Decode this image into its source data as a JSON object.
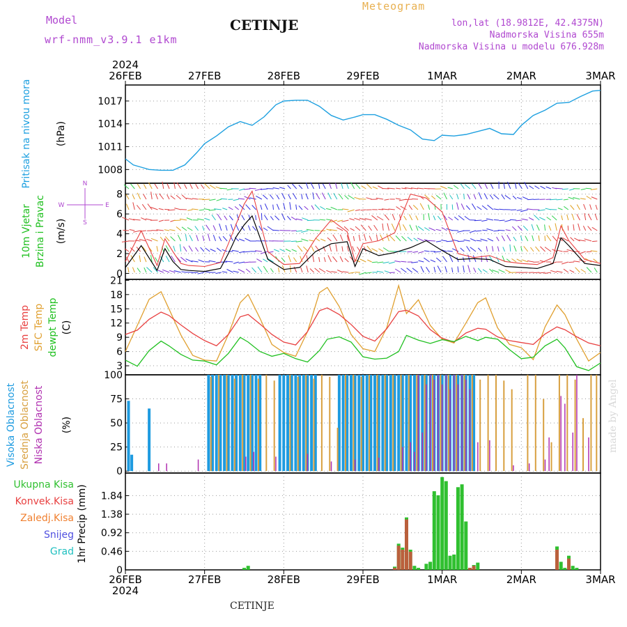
{
  "header": {
    "model_label": "Model",
    "model_name": "wrf-nmm_v3.9.1 e1km",
    "city": "CETINJE",
    "title": "Meteogram",
    "coords": "lon,lat (18.9812E, 42.4375N)",
    "elevation": "Nadmorska Visina 655m",
    "elevation_model": "Nadmorska Visina u modelu 676.928m"
  },
  "footer": {
    "city": "CETINJE",
    "credit": "made by Angel"
  },
  "time_axis": {
    "year": "2024",
    "labels": [
      "26FEB",
      "27FEB",
      "28FEB",
      "29FEB",
      "1MAR",
      "2MAR",
      "3MAR"
    ]
  },
  "colors": {
    "pressure": "#1ea0e0",
    "temp2m": "#e84040",
    "sfc_temp": "#e0a030",
    "dewpt": "#20c020",
    "high_cloud": "#1e9be0",
    "mid_cloud": "#d8a040",
    "low_cloud": "#b030b0",
    "total_precip": "#30c030",
    "conv_precip": "#e84040",
    "frozen_precip": "#f08030",
    "snow": "#5050e0",
    "graupel": "#20c0c0",
    "wind_speed": "#000000",
    "wind_gust": "#e84040"
  },
  "chart_data": [
    {
      "type": "line",
      "panel": "pressure",
      "ylabel": "Pritisak na nivou mora",
      "unit": "(hPa)",
      "yticks": [
        1008,
        1011,
        1014,
        1017
      ],
      "ylim": [
        1006.2,
        1019.1
      ],
      "x": [
        0,
        0.1,
        0.2,
        0.3,
        0.45,
        0.6,
        0.75,
        0.9,
        1.0,
        1.15,
        1.3,
        1.45,
        1.6,
        1.75,
        1.9,
        2.0,
        2.15,
        2.3,
        2.45,
        2.6,
        2.75,
        2.9,
        3.0,
        3.15,
        3.3,
        3.45,
        3.6,
        3.75,
        3.9,
        4.0,
        4.15,
        4.3,
        4.45,
        4.6,
        4.75,
        4.9,
        5.0,
        5.15,
        5.3,
        5.45,
        5.6,
        5.75,
        5.9,
        6.0
      ],
      "series": [
        {
          "values": [
            1009.4,
            1008.6,
            1008.3,
            1008.0,
            1007.9,
            1007.9,
            1008.6,
            1010.2,
            1011.4,
            1012.4,
            1013.6,
            1014.3,
            1013.8,
            1014.9,
            1016.5,
            1017.0,
            1017.1,
            1017.1,
            1016.3,
            1015.1,
            1014.5,
            1014.9,
            1015.2,
            1015.2,
            1014.6,
            1013.8,
            1013.2,
            1012.0,
            1011.8,
            1012.5,
            1012.4,
            1012.6,
            1013.0,
            1013.4,
            1012.7,
            1012.6,
            1013.8,
            1015.1,
            1015.8,
            1016.7,
            1016.8,
            1017.6,
            1018.3,
            1018.4
          ]
        }
      ]
    },
    {
      "type": "line",
      "panel": "wind",
      "ylabel": "10m Vjetar Brzina i Pravac",
      "unit": "(m/s)",
      "direction_key": [
        "N",
        "S",
        "W",
        "E"
      ],
      "yticks": [
        0,
        2,
        4,
        6,
        8
      ],
      "ylim": [
        -0.6,
        9.1
      ],
      "x": [
        0,
        0.2,
        0.4,
        0.5,
        0.6,
        0.7,
        0.8,
        1.0,
        1.2,
        1.3,
        1.4,
        1.5,
        1.6,
        1.8,
        2.0,
        2.2,
        2.4,
        2.6,
        2.8,
        2.9,
        3.0,
        3.2,
        3.4,
        3.6,
        3.8,
        4.0,
        4.2,
        4.4,
        4.6,
        4.8,
        5.0,
        5.2,
        5.4,
        5.5,
        5.6,
        5.8,
        6.0
      ],
      "series": [
        {
          "name": "speed",
          "values": [
            0.6,
            2.8,
            0.3,
            2.5,
            1.2,
            0.4,
            0.3,
            0.2,
            0.5,
            2.0,
            3.7,
            4.9,
            5.8,
            1.4,
            0.4,
            0.6,
            2.2,
            3.0,
            3.2,
            0.7,
            2.5,
            1.8,
            2.1,
            2.6,
            3.3,
            2.3,
            1.4,
            1.5,
            1.4,
            0.7,
            0.6,
            0.5,
            1.0,
            3.6,
            2.8,
            1.0,
            0.8
          ]
        },
        {
          "name": "gust",
          "values": [
            1.2,
            4.3,
            0.8,
            3.5,
            2.2,
            1.0,
            0.8,
            0.7,
            1.1,
            3.0,
            5.0,
            7.0,
            8.3,
            2.2,
            0.9,
            1.0,
            3.5,
            5.4,
            4.2,
            1.2,
            3.0,
            3.3,
            4.1,
            8.0,
            7.6,
            6.2,
            2.0,
            1.6,
            1.8,
            1.2,
            1.0,
            0.9,
            1.6,
            4.8,
            3.3,
            1.4,
            1.0
          ]
        }
      ]
    },
    {
      "type": "line",
      "panel": "temperature",
      "ylabel": "2m Temp / SFC Temp / dewpt Temp",
      "unit": "(C)",
      "yticks": [
        3,
        6,
        9,
        12,
        15,
        18,
        21
      ],
      "ylim": [
        1.1,
        21.2
      ],
      "x": [
        0,
        0.15,
        0.3,
        0.45,
        0.55,
        0.7,
        0.85,
        1.0,
        1.15,
        1.3,
        1.45,
        1.55,
        1.7,
        1.85,
        2.0,
        2.15,
        2.3,
        2.45,
        2.55,
        2.7,
        2.85,
        3.0,
        3.15,
        3.3,
        3.45,
        3.55,
        3.7,
        3.85,
        4.0,
        4.15,
        4.3,
        4.45,
        4.55,
        4.7,
        4.85,
        5.0,
        5.15,
        5.3,
        5.45,
        5.55,
        5.7,
        5.85,
        6.0
      ],
      "series": [
        {
          "name": "2m Temp",
          "values": [
            9.6,
            10.5,
            12.8,
            14.3,
            13.6,
            11.6,
            9.8,
            8.3,
            7.2,
            9.6,
            13.3,
            13.8,
            11.8,
            9.6,
            8.0,
            7.4,
            10.2,
            14.6,
            15.2,
            13.8,
            11.7,
            9.2,
            8.2,
            10.8,
            14.4,
            14.7,
            13.5,
            10.6,
            8.8,
            8.0,
            9.9,
            10.9,
            10.7,
            9.1,
            8.3,
            7.9,
            7.5,
            9.7,
            11.2,
            10.6,
            9.1,
            7.8,
            7.2
          ]
        },
        {
          "name": "SFC Temp",
          "values": [
            6.0,
            11.5,
            17.0,
            18.6,
            15.0,
            9.5,
            5.2,
            4.2,
            4.0,
            9.6,
            16.3,
            18.0,
            13.0,
            7.5,
            5.8,
            5.0,
            10.2,
            18.4,
            19.5,
            15.5,
            9.6,
            6.6,
            6.0,
            11.0,
            19.9,
            14.0,
            16.9,
            11.5,
            8.6,
            7.8,
            12.0,
            16.3,
            17.3,
            11.0,
            7.5,
            6.8,
            4.3,
            11.2,
            15.8,
            13.8,
            8.6,
            4.0,
            5.8
          ]
        },
        {
          "name": "dewpt Temp",
          "values": [
            4.2,
            2.9,
            6.2,
            8.2,
            7.2,
            5.4,
            4.2,
            4.0,
            3.2,
            5.6,
            9.0,
            8.0,
            6.0,
            5.0,
            5.6,
            4.5,
            3.8,
            6.2,
            8.6,
            9.1,
            8.0,
            4.9,
            4.4,
            4.6,
            6.0,
            9.4,
            8.4,
            7.7,
            8.5,
            8.1,
            9.2,
            8.3,
            9.0,
            8.6,
            6.4,
            4.5,
            4.8,
            7.2,
            8.6,
            6.8,
            2.8,
            2.0,
            3.6
          ]
        }
      ]
    },
    {
      "type": "bar",
      "panel": "cloud",
      "ylabel": "Visoka Oblacnost / Srednja Oblacnost / Niska Oblacnost",
      "unit": "(%)",
      "yticks": [
        0,
        25,
        50,
        75,
        100
      ],
      "ylim": [
        -2,
        100
      ],
      "series": [
        {
          "name": "Visoka Oblacnost",
          "x": [
            0.04,
            0.08,
            0.3,
            1.05,
            1.1,
            1.15,
            1.2,
            1.25,
            1.3,
            1.35,
            1.4,
            1.45,
            1.5,
            1.55,
            1.6,
            1.65,
            1.7,
            1.95,
            2.0,
            2.05,
            2.1,
            2.15,
            2.2,
            2.25,
            2.3,
            2.35,
            2.4,
            2.7,
            2.75,
            2.8,
            2.85,
            2.9,
            2.95,
            3.0,
            3.05,
            3.1,
            3.15,
            3.2,
            3.25,
            3.3,
            3.35,
            3.4,
            3.45,
            3.5,
            3.55,
            3.6,
            3.65,
            3.7,
            3.75,
            3.8,
            3.85,
            3.9,
            3.95,
            4.0,
            4.05,
            4.1,
            4.15,
            4.2,
            4.25,
            4.3,
            4.35,
            4.4
          ],
          "values": [
            73,
            17,
            65,
            100,
            100,
            100,
            100,
            100,
            100,
            100,
            100,
            100,
            100,
            100,
            100,
            100,
            100,
            100,
            100,
            100,
            100,
            100,
            100,
            100,
            100,
            100,
            100,
            100,
            100,
            100,
            100,
            100,
            100,
            100,
            100,
            100,
            100,
            100,
            100,
            100,
            100,
            100,
            100,
            100,
            100,
            100,
            100,
            100,
            100,
            100,
            100,
            100,
            100,
            100,
            100,
            100,
            100,
            100,
            100,
            100,
            100,
            100
          ]
        },
        {
          "name": "Srednja Oblacnost",
          "x": [
            1.08,
            1.18,
            1.28,
            1.38,
            1.48,
            1.58,
            1.68,
            1.78,
            1.88,
            2.08,
            2.18,
            2.28,
            2.38,
            2.48,
            2.58,
            2.68,
            2.78,
            2.88,
            2.98,
            3.08,
            3.18,
            3.28,
            3.38,
            3.48,
            3.58,
            3.68,
            3.78,
            3.88,
            3.98,
            4.08,
            4.18,
            4.28,
            4.38,
            4.48,
            4.58,
            4.68,
            4.78,
            4.88,
            5.08,
            5.18,
            5.28,
            5.38,
            5.48,
            5.58,
            5.68,
            5.78,
            5.88,
            5.95
          ],
          "values": [
            98,
            100,
            100,
            96,
            100,
            100,
            96,
            100,
            94,
            100,
            98,
            100,
            96,
            100,
            98,
            45,
            100,
            100,
            98,
            100,
            100,
            100,
            100,
            100,
            100,
            100,
            100,
            100,
            100,
            100,
            100,
            100,
            100,
            95,
            100,
            100,
            94,
            85,
            100,
            100,
            75,
            30,
            100,
            100,
            95,
            55,
            100,
            100
          ]
        },
        {
          "name": "Niska Oblacnost",
          "x": [
            0.42,
            0.52,
            0.92,
            1.52,
            1.62,
            1.9,
            2.3,
            2.6,
            2.9,
            3.2,
            3.5,
            3.6,
            3.65,
            3.7,
            3.75,
            3.8,
            3.85,
            3.9,
            3.95,
            4.0,
            4.05,
            4.1,
            4.15,
            4.2,
            4.25,
            4.3,
            4.35,
            4.45,
            4.6,
            4.9,
            5.1,
            5.3,
            5.35,
            5.5,
            5.55,
            5.65,
            5.7,
            5.85
          ],
          "values": [
            8,
            8,
            12,
            15,
            20,
            15,
            18,
            10,
            12,
            14,
            25,
            30,
            20,
            100,
            40,
            90,
            100,
            95,
            100,
            90,
            100,
            85,
            100,
            90,
            100,
            95,
            85,
            30,
            32,
            6,
            8,
            12,
            35,
            78,
            70,
            40,
            100,
            35
          ]
        }
      ]
    },
    {
      "type": "bar",
      "panel": "precip",
      "ylabel": "1hr Precip",
      "unit": "(mm)",
      "legend": [
        "Ukupna Kisa",
        "Konvek.Kisa",
        "Zaledj.Kisa",
        "Snijeg",
        "Grad"
      ],
      "yticks": [
        0,
        0.46,
        0.92,
        1.38,
        1.84
      ],
      "ylim": [
        0,
        2.4
      ],
      "series": [
        {
          "name": "Ukupna Kisa",
          "x": [
            1.5,
            1.55,
            3.4,
            3.45,
            3.5,
            3.55,
            3.6,
            3.65,
            3.7,
            3.8,
            3.85,
            3.9,
            3.95,
            4.0,
            4.05,
            4.1,
            4.15,
            4.2,
            4.25,
            4.3,
            4.35,
            4.4,
            4.45,
            5.45,
            5.5,
            5.55,
            5.6,
            5.65,
            5.7
          ],
          "values": [
            0.05,
            0.1,
            0.08,
            0.65,
            0.55,
            1.3,
            0.5,
            0.1,
            0.05,
            0.15,
            0.2,
            1.95,
            1.85,
            2.3,
            2.2,
            0.35,
            0.38,
            2.05,
            2.12,
            1.2,
            0.05,
            0.12,
            0.18,
            0.58,
            0.2,
            0.05,
            0.35,
            0.1,
            0.05
          ]
        },
        {
          "name": "Konvek.Kisa",
          "x": [
            3.4,
            3.45,
            3.5,
            3.55,
            3.6,
            4.35,
            4.4,
            5.45,
            5.6
          ],
          "values": [
            0.05,
            0.6,
            0.5,
            1.25,
            0.45,
            0.05,
            0.1,
            0.5,
            0.28
          ]
        }
      ]
    }
  ]
}
